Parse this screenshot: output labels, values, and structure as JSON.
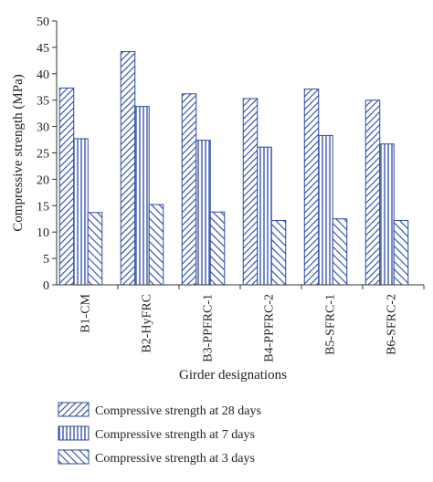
{
  "chart_data": {
    "type": "bar",
    "categories": [
      "B1-CM",
      "B2-HyFRC",
      "B3-PPFRC-1",
      "B4-PPFRC-2",
      "B5-SFRC-1",
      "B6-SFRC-2"
    ],
    "series": [
      {
        "name": "Compressive strength at 28 days",
        "values": [
          37.3,
          44.2,
          36.2,
          35.3,
          37.1,
          35.0
        ]
      },
      {
        "name": "Compressive strength at 7 days",
        "values": [
          27.7,
          33.8,
          27.4,
          26.1,
          28.3,
          26.7
        ]
      },
      {
        "name": "Compressive strength at 3 days",
        "values": [
          13.7,
          15.2,
          13.8,
          12.2,
          12.5,
          12.2
        ]
      }
    ],
    "xlabel": "Girder designations",
    "ylabel": "Compressive strength (MPa)",
    "ylim": [
      0,
      50
    ],
    "yticks": [
      "0",
      "5",
      "10",
      "15",
      "20",
      "25",
      "30",
      "35",
      "40",
      "45",
      "50"
    ],
    "grid": false,
    "legend_position": "bottom",
    "colors": {
      "bar_stroke": "#2b4aa8",
      "pattern_line": "#2b4aa8",
      "axis": "#333333"
    },
    "patterns": [
      "diagonal-hatch-dense",
      "vertical-stripes",
      "diagonal-hatch"
    ]
  }
}
